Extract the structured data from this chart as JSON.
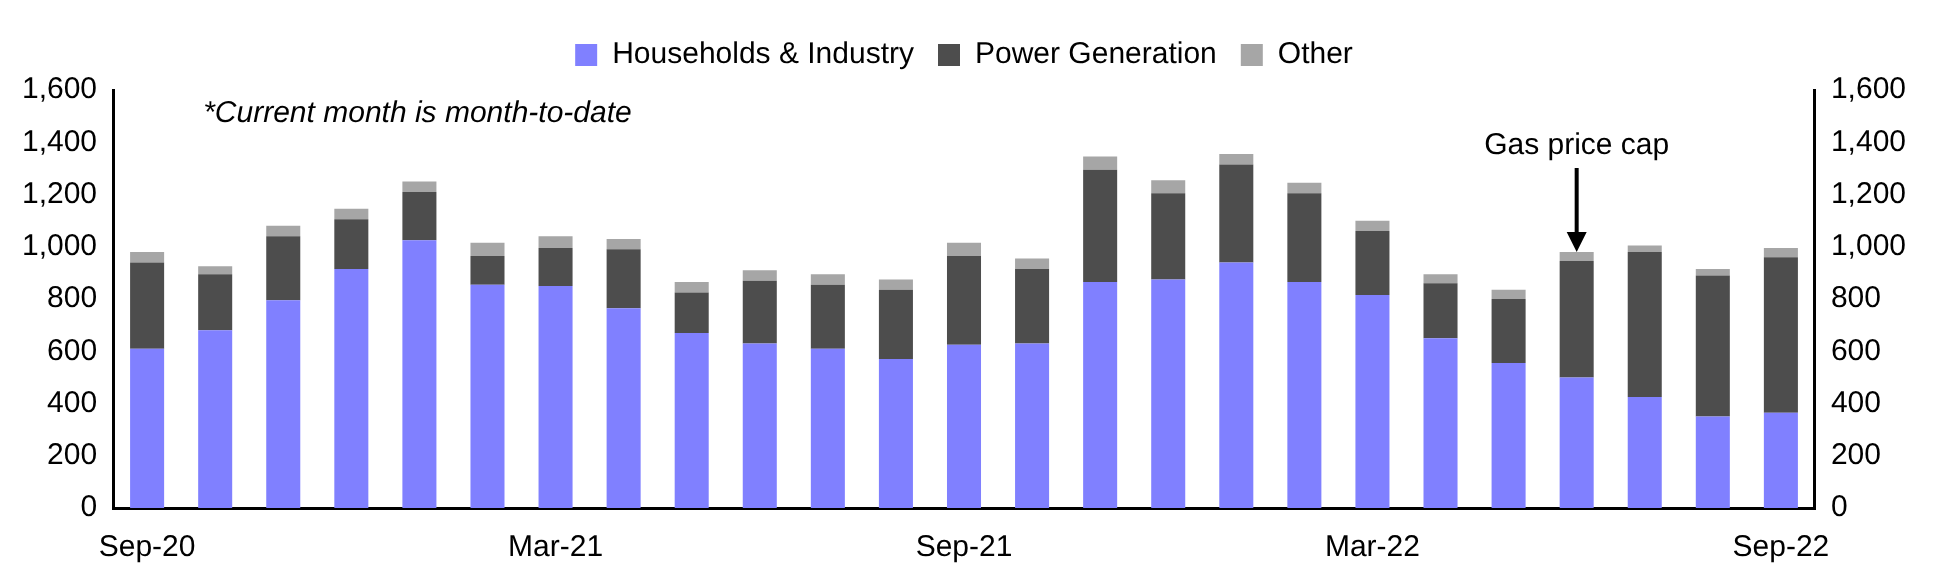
{
  "chart_data": {
    "type": "bar",
    "stacked": true,
    "categories": [
      "Sep-20",
      null,
      null,
      null,
      null,
      null,
      "Mar-21",
      null,
      null,
      null,
      null,
      null,
      "Sep-21",
      null,
      null,
      null,
      null,
      null,
      "Mar-22",
      null,
      null,
      null,
      null,
      null,
      "Sep-22"
    ],
    "series": [
      {
        "name": "Households & Industry",
        "color": "#8080ff",
        "values": [
          610,
          680,
          795,
          915,
          1025,
          855,
          850,
          765,
          670,
          630,
          610,
          570,
          625,
          630,
          865,
          875,
          940,
          865,
          815,
          650,
          555,
          500,
          425,
          350,
          365
        ]
      },
      {
        "name": "Power Generation",
        "color": "#4d4d4d",
        "values": [
          330,
          215,
          245,
          190,
          185,
          110,
          145,
          225,
          155,
          240,
          245,
          265,
          340,
          285,
          430,
          330,
          375,
          340,
          245,
          210,
          245,
          445,
          555,
          540,
          595
        ]
      },
      {
        "name": "Other",
        "color": "#a6a6a6",
        "values": [
          40,
          30,
          40,
          40,
          40,
          50,
          45,
          40,
          40,
          40,
          40,
          40,
          50,
          40,
          50,
          50,
          40,
          40,
          40,
          35,
          35,
          35,
          25,
          25,
          35
        ]
      }
    ],
    "ylim": [
      0,
      1600
    ],
    "yticks": [
      0,
      200,
      400,
      600,
      800,
      {
        "value": 1000,
        "label": "1,000"
      },
      {
        "value": 1200,
        "label": "1,200"
      },
      {
        "value": 1400,
        "label": "1,400"
      },
      {
        "value": 1600,
        "label": "1,600"
      }
    ],
    "y2lim": [
      0,
      1600
    ],
    "y2ticks": [
      0,
      200,
      400,
      600,
      800,
      {
        "value": 1000,
        "label": "1,000"
      },
      {
        "value": 1200,
        "label": "1,200"
      },
      {
        "value": 1400,
        "label": "1,400"
      },
      {
        "value": 1600,
        "label": "1,600"
      }
    ],
    "legend": "top",
    "grid": false,
    "annotations": [
      "*Current month is month-to-date",
      {
        "text": "Gas price cap",
        "y": 980
      }
    ]
  }
}
